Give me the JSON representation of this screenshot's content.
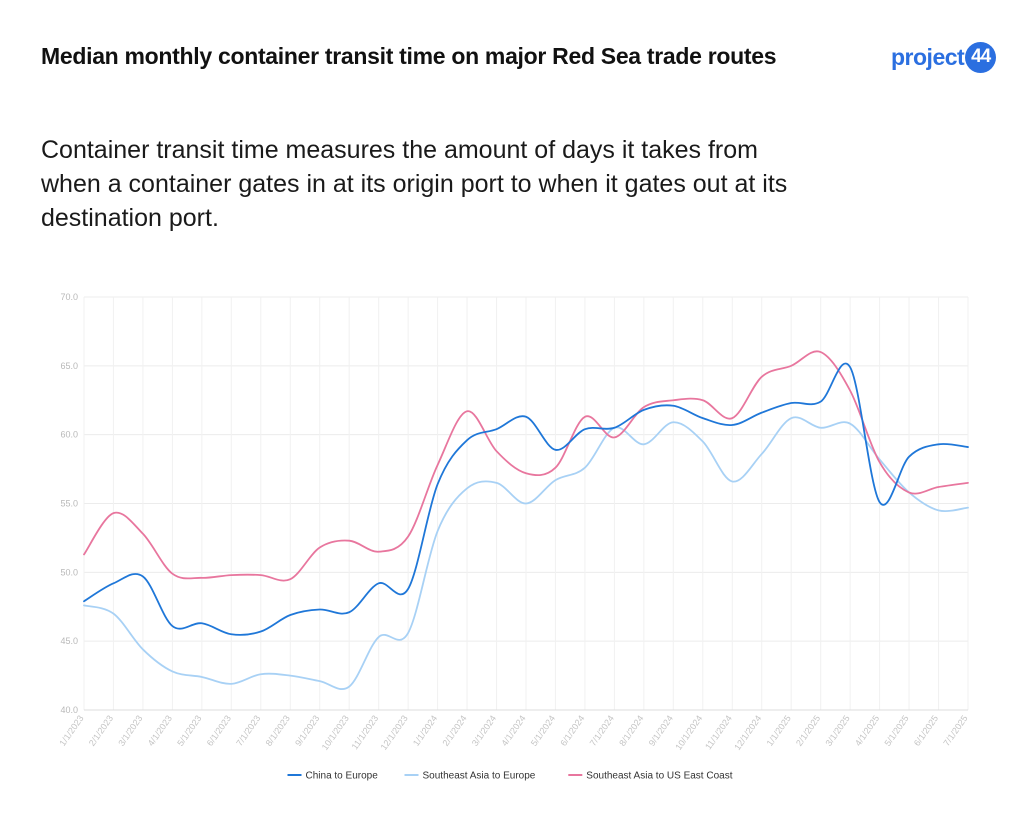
{
  "header": {
    "title": "Median monthly container transit time on major Red Sea trade routes",
    "subtitle": "Container transit time measures the amount of days it takes from when a container gates in at its origin port to when it gates out at its destination port."
  },
  "logo": {
    "text": "project",
    "badge": "44",
    "color": "#2b6fe0"
  },
  "chart_data": {
    "type": "line",
    "title": "Median monthly container transit time on major Red Sea trade routes",
    "xlabel": "",
    "ylabel": "",
    "ylim": [
      40,
      70
    ],
    "yticks": [
      40,
      45,
      50,
      55,
      60,
      65,
      70
    ],
    "ytick_labels": [
      "40.0",
      "45.0",
      "50.0",
      "55.0",
      "60.0",
      "65.0",
      "70.0"
    ],
    "grid": true,
    "legend_position": "bottom",
    "categories": [
      "1/1/2023",
      "2/1/2023",
      "3/1/2023",
      "4/1/2023",
      "5/1/2023",
      "6/1/2023",
      "7/1/2023",
      "8/1/2023",
      "9/1/2023",
      "10/1/2023",
      "11/1/2023",
      "12/1/2023",
      "1/1/2024",
      "2/1/2024",
      "3/1/2024",
      "4/1/2024",
      "5/1/2024",
      "6/1/2024",
      "7/1/2024",
      "8/1/2024",
      "9/1/2024",
      "10/1/2024",
      "11/1/2024",
      "12/1/2024",
      "1/1/2025",
      "2/1/2025",
      "3/1/2025",
      "4/1/2025",
      "5/1/2025",
      "6/1/2025",
      "7/1/2025"
    ],
    "series": [
      {
        "name": "China to Europe",
        "color": "#1f77d8",
        "values": [
          47.9,
          49.2,
          49.7,
          46.1,
          46.3,
          45.5,
          45.7,
          46.9,
          47.3,
          47.1,
          49.2,
          48.8,
          56.4,
          59.6,
          60.4,
          61.3,
          58.9,
          60.4,
          60.5,
          61.8,
          62.1,
          61.2,
          60.7,
          61.6,
          62.3,
          62.4,
          64.9,
          55.1,
          58.4,
          59.3,
          59.1
        ]
      },
      {
        "name": "Southeast Asia to Europe",
        "color": "#a8d1f5",
        "values": [
          47.6,
          47.0,
          44.4,
          42.8,
          42.4,
          41.9,
          42.6,
          42.5,
          42.1,
          41.7,
          45.3,
          45.6,
          53.0,
          56.1,
          56.5,
          55.0,
          56.7,
          57.6,
          60.5,
          59.3,
          60.9,
          59.5,
          56.6,
          58.6,
          61.2,
          60.5,
          60.8,
          58.2,
          55.8,
          54.5,
          54.7
        ]
      },
      {
        "name": "Southeast Asia to US East Coast",
        "color": "#e8769e",
        "values": [
          51.3,
          54.3,
          52.8,
          49.9,
          49.6,
          49.8,
          49.8,
          49.5,
          51.8,
          52.3,
          51.5,
          52.6,
          57.8,
          61.7,
          58.8,
          57.2,
          57.6,
          61.3,
          59.8,
          62.0,
          62.5,
          62.5,
          61.2,
          64.2,
          65.0,
          66.0,
          63.2,
          58.0,
          55.8,
          56.2,
          56.5
        ]
      }
    ]
  }
}
